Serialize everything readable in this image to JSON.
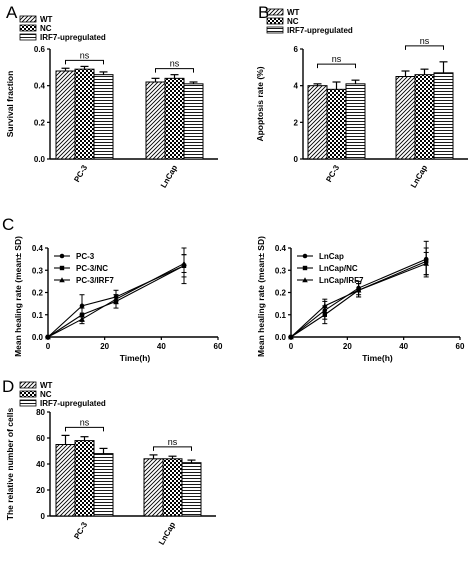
{
  "chart_data": [
    {
      "panel": "A",
      "type": "bar",
      "groups": [
        "PC-3",
        "LnCap"
      ],
      "series": [
        {
          "name": "WT",
          "values": [
            0.48,
            0.42
          ],
          "errors": [
            0.015,
            0.02
          ]
        },
        {
          "name": "NC",
          "values": [
            0.49,
            0.44
          ],
          "errors": [
            0.015,
            0.02
          ]
        },
        {
          "name": "IRF7-upregulated",
          "values": [
            0.46,
            0.41
          ],
          "errors": [
            0.015,
            0.01
          ]
        }
      ],
      "ylabel": "Survival fraction",
      "ylim": [
        0,
        0.6
      ],
      "yticks": [
        "0.0",
        "0.2",
        "0.4",
        "0.6"
      ],
      "annotations": [
        "ns",
        "ns"
      ],
      "legend": "top-left"
    },
    {
      "panel": "B",
      "type": "bar",
      "groups": [
        "PC-3",
        "LnCap"
      ],
      "series": [
        {
          "name": "WT",
          "values": [
            4.0,
            4.5
          ],
          "errors": [
            0.1,
            0.3
          ]
        },
        {
          "name": "NC",
          "values": [
            3.8,
            4.6
          ],
          "errors": [
            0.4,
            0.3
          ]
        },
        {
          "name": "IRF7-upregulated",
          "values": [
            4.1,
            4.7
          ],
          "errors": [
            0.2,
            0.6
          ]
        }
      ],
      "ylabel": "Apoptosis rate (%)",
      "ylim": [
        0,
        6
      ],
      "yticks": [
        "0",
        "2",
        "4",
        "6"
      ],
      "annotations": [
        "ns",
        "ns"
      ],
      "legend": "top-left"
    },
    {
      "panel": "C",
      "type": "line",
      "x": [
        0,
        12,
        24,
        48
      ],
      "series": [
        {
          "name": "PC-3",
          "values": [
            0,
            0.14,
            0.18,
            0.32
          ],
          "errors": [
            0,
            0.05,
            0.03,
            0.08
          ]
        },
        {
          "name": "PC-3/NC",
          "values": [
            0,
            0.1,
            0.16,
            0.32
          ],
          "errors": [
            0,
            0.03,
            0.03,
            0.05
          ]
        },
        {
          "name": "PC-3/IRF7",
          "values": [
            0,
            0.08,
            0.17,
            0.33
          ],
          "errors": [
            0,
            0.02,
            0.02,
            0.04
          ]
        }
      ],
      "xlabel": "Time(h)",
      "ylabel": "Mean healing rate (mean± SD)",
      "xlim": [
        0,
        60
      ],
      "ylim": [
        0,
        0.4
      ],
      "xticks": [
        "0",
        "20",
        "40",
        "60"
      ],
      "yticks": [
        "0.0",
        "0.1",
        "0.2",
        "0.3",
        "0.4"
      ],
      "legend": "top-left"
    },
    {
      "panel": "C",
      "type": "line",
      "x": [
        0,
        12,
        24,
        48
      ],
      "series": [
        {
          "name": "LnCap",
          "values": [
            0,
            0.12,
            0.22,
            0.35
          ],
          "errors": [
            0,
            0.04,
            0.03,
            0.08
          ]
        },
        {
          "name": "LnCap/NC",
          "values": [
            0,
            0.1,
            0.21,
            0.34
          ],
          "errors": [
            0,
            0.04,
            0.03,
            0.06
          ]
        },
        {
          "name": "LnCap/IRF7",
          "values": [
            0,
            0.14,
            0.21,
            0.33
          ],
          "errors": [
            0,
            0.03,
            0.03,
            0.05
          ]
        }
      ],
      "xlabel": "Time(h)",
      "ylabel": "Mean healing rate (mean± SD)",
      "xlim": [
        0,
        60
      ],
      "ylim": [
        0,
        0.4
      ],
      "xticks": [
        "0",
        "20",
        "40",
        "60"
      ],
      "yticks": [
        "0.0",
        "0.1",
        "0.2",
        "0.3",
        "0.4"
      ],
      "legend": "top-left"
    },
    {
      "panel": "D",
      "type": "bar",
      "groups": [
        "PC-3",
        "LnCap"
      ],
      "series": [
        {
          "name": "WT",
          "values": [
            55,
            44
          ],
          "errors": [
            7,
            3
          ]
        },
        {
          "name": "NC",
          "values": [
            58,
            44
          ],
          "errors": [
            3,
            2
          ]
        },
        {
          "name": "IRF7-upregulated",
          "values": [
            48,
            41
          ],
          "errors": [
            4,
            2
          ]
        }
      ],
      "ylabel": "The relative number of cells",
      "ylim": [
        0,
        80
      ],
      "yticks": [
        "0",
        "20",
        "40",
        "60",
        "80"
      ],
      "annotations": [
        "ns",
        "ns"
      ],
      "legend": "top-left"
    }
  ],
  "panel_labels": [
    "A",
    "B",
    "C",
    "D"
  ],
  "colors": {
    "axis": "#000000",
    "fill": "#ffffff"
  }
}
